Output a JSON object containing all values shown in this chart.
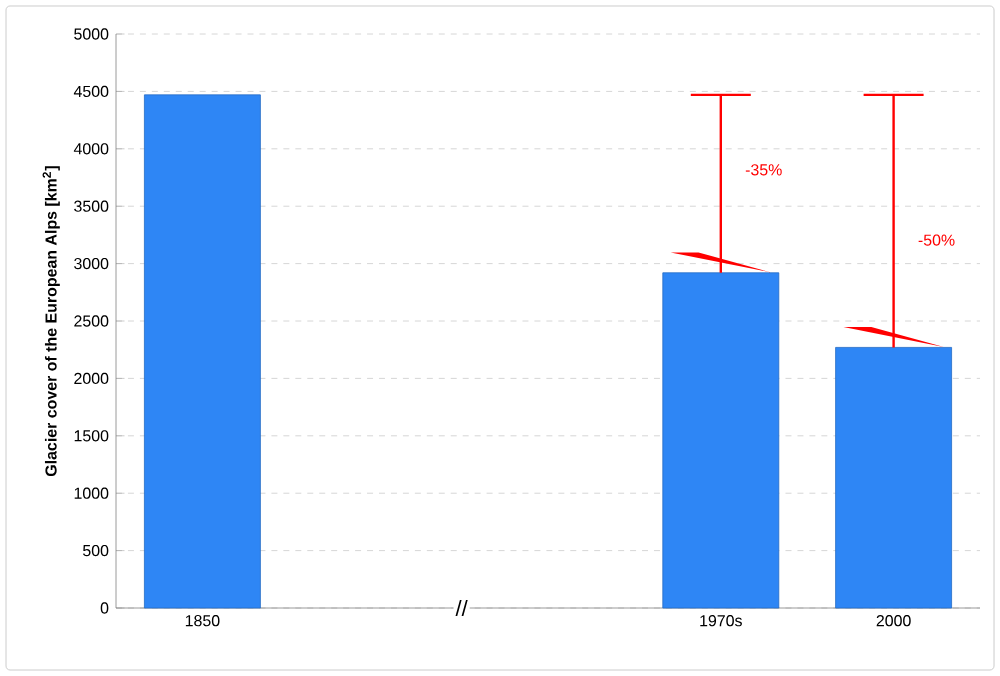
{
  "chart_data": {
    "type": "bar",
    "ylabel": "Glacier cover of the European Alps [km$^{2}$]",
    "categories": [
      "1850",
      null,
      null,
      "1970s",
      "2000"
    ],
    "values": [
      4470,
      null,
      null,
      2920,
      2270
    ],
    "color": "#2e86f5",
    "errors": [
      null,
      null,
      null,
      [
        2920,
        4470
      ],
      [
        2270,
        4470
      ]
    ],
    "ylim": [
      0,
      5000
    ],
    "yticks": [
      0,
      500,
      1000,
      1500,
      2000,
      2500,
      3000,
      3500,
      4000,
      4500,
      5000
    ],
    "grid": "y",
    "annotations": [
      "-35%",
      "-50%",
      "//"
    ]
  }
}
